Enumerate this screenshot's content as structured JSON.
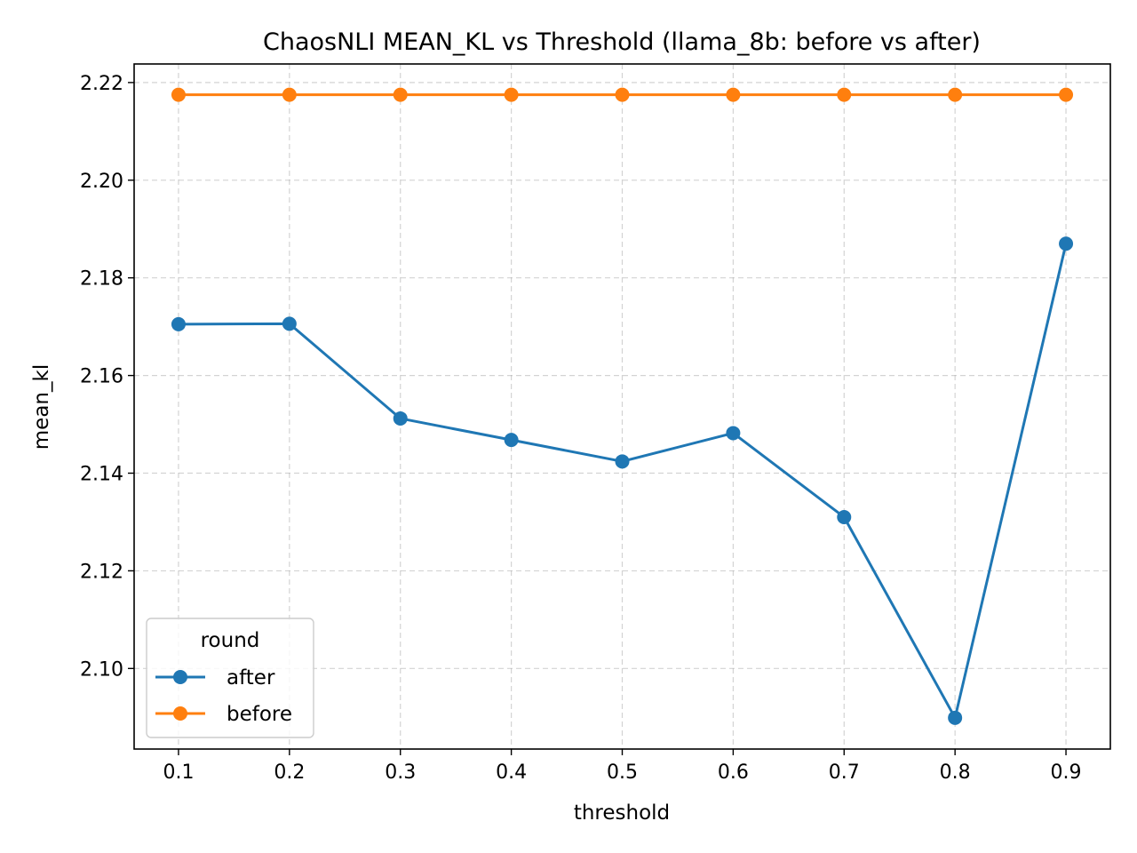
{
  "chart_data": {
    "type": "line",
    "title": "ChaosNLI MEAN_KL vs Threshold (llama_8b: before vs after)",
    "xlabel": "threshold",
    "ylabel": "mean_kl",
    "x": [
      0.1,
      0.2,
      0.3,
      0.4,
      0.5,
      0.6,
      0.7,
      0.8,
      0.9
    ],
    "x_tick_labels": [
      "0.1",
      "0.2",
      "0.3",
      "0.4",
      "0.5",
      "0.6",
      "0.7",
      "0.8",
      "0.9"
    ],
    "y_ticks": [
      2.1,
      2.12,
      2.14,
      2.16,
      2.18,
      2.2,
      2.22
    ],
    "y_tick_labels": [
      "2.10",
      "2.12",
      "2.14",
      "2.16",
      "2.18",
      "2.20",
      "2.22"
    ],
    "xlim": [
      0.06,
      0.94
    ],
    "ylim": [
      2.0835,
      2.2238
    ],
    "grid": true,
    "legend": {
      "title": "round",
      "placement": "lower-left"
    },
    "series": [
      {
        "name": "after",
        "color": "#1f77b4",
        "marker": "circle",
        "values": [
          2.1705,
          2.1706,
          2.1512,
          2.1468,
          2.1424,
          2.1482,
          2.131,
          2.0899,
          2.187
        ]
      },
      {
        "name": "before",
        "color": "#ff7f0e",
        "marker": "circle",
        "values": [
          2.2175,
          2.2175,
          2.2175,
          2.2175,
          2.2175,
          2.2175,
          2.2175,
          2.2175,
          2.2175
        ]
      }
    ]
  }
}
